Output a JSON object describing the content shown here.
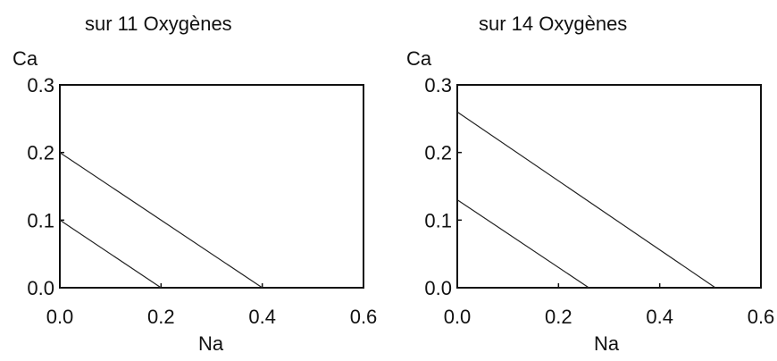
{
  "chart_data": [
    {
      "type": "line",
      "title": "sur 11 Oxygènes",
      "xlabel": "Na",
      "ylabel": "Ca",
      "xlim": [
        0.0,
        0.6
      ],
      "ylim": [
        0.0,
        0.3
      ],
      "x_ticks": [
        "0.0",
        "0.2",
        "0.4",
        "0.6"
      ],
      "y_ticks": [
        "0.0",
        "0.1",
        "0.2",
        "0.3"
      ],
      "grid": false,
      "series": [
        {
          "points": [
            [
              0.0,
              0.1
            ],
            [
              0.2,
              0.0
            ]
          ]
        },
        {
          "points": [
            [
              0.0,
              0.2
            ],
            [
              0.4,
              0.0
            ]
          ]
        }
      ]
    },
    {
      "type": "line",
      "title": "sur 14 Oxygènes",
      "xlabel": "Na",
      "ylabel": "Ca",
      "xlim": [
        0.0,
        0.6
      ],
      "ylim": [
        0.0,
        0.3
      ],
      "x_ticks": [
        "0.0",
        "0.2",
        "0.4",
        "0.6"
      ],
      "y_ticks": [
        "0.0",
        "0.1",
        "0.2",
        "0.3"
      ],
      "grid": false,
      "series": [
        {
          "points": [
            [
              0.0,
              0.13
            ],
            [
              0.26,
              0.0
            ]
          ]
        },
        {
          "points": [
            [
              0.0,
              0.26
            ],
            [
              0.51,
              0.0
            ]
          ]
        }
      ]
    }
  ]
}
